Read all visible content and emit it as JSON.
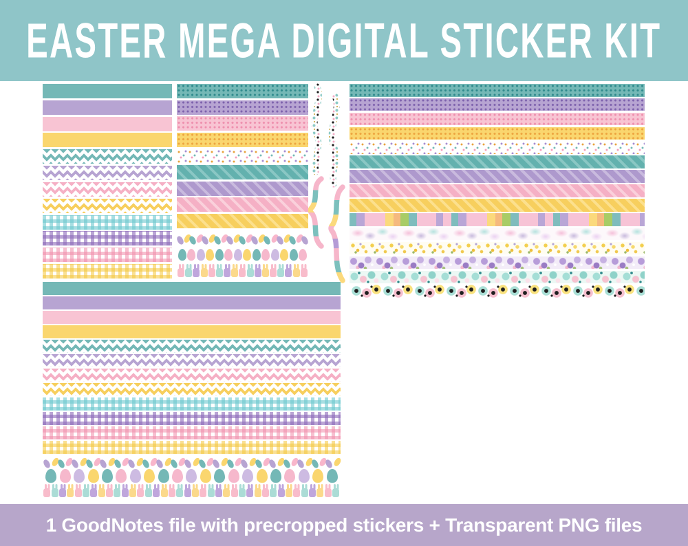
{
  "title_banner": {
    "text": "EASTER MEGA DIGITAL STICKER KIT",
    "bg": "#8fc5c8",
    "fg": "#ffffff"
  },
  "footer_banner": {
    "text": "1 GoodNotes file with precropped stickers + Transparent PNG files",
    "bg": "#b7a6ca",
    "fg": "#ffffff"
  },
  "palette": {
    "teal": "#74b8b6",
    "purple": "#b7a4d2",
    "pink": "#f8c4d3",
    "yellow": "#fad66e",
    "tealDot": "#2f8a8c",
    "purpleDot": "#7e62ad",
    "pinkDot": "#ee8fae",
    "yellowDot": "#eda43f",
    "tealLt": "#8ac7c4",
    "purpleLt": "#c9bade",
    "pinkLt": "#fad0db",
    "yellowLt": "#fce08d",
    "tealDg": "#63b1ae",
    "purpleDg": "#ae99cd",
    "pinkDg": "#f5b0c5",
    "yellowDg": "#f7cf5e",
    "tealGing": "rgba(108,200,206,0.6)",
    "purpleGing": "rgba(140,105,185,0.6)",
    "pinkGing": "rgba(240,140,170,0.55)",
    "yellowGing": "rgba(244,198,60,0.55)"
  },
  "icon_colors": {
    "beans": [
      "#b7a4d2",
      "#fad66e",
      "#74b8b6",
      "#f8b6cb"
    ],
    "eggs": [
      "#74b8b6",
      "#f6b8cc",
      "#cdbbe2",
      "#fad66e"
    ],
    "bunnies": [
      "#f8bccb",
      "#abdcd6",
      "#bfa6dc",
      "#fbd98b"
    ]
  },
  "panels": {
    "top_left": {
      "rows": [
        {
          "p": "solid",
          "c": "teal"
        },
        {
          "p": "solid",
          "c": "purple"
        },
        {
          "p": "solid",
          "c": "pink"
        },
        {
          "p": "solid",
          "c": "yellow"
        },
        {
          "p": "chevron",
          "c": "teal"
        },
        {
          "p": "chevron",
          "c": "purple"
        },
        {
          "p": "chevron",
          "c": "pinkDg"
        },
        {
          "p": "chevron",
          "c": "yellowDg"
        },
        {
          "p": "gingham",
          "c": "tealGing"
        },
        {
          "p": "gingham",
          "c": "purpleGing"
        },
        {
          "p": "gingham",
          "c": "pinkGing"
        },
        {
          "p": "gingham",
          "c": "yellowGing"
        }
      ]
    },
    "top_middle": {
      "rows": [
        {
          "p": "polka",
          "c": "teal",
          "c2": "tealDot"
        },
        {
          "p": "polka",
          "c": "purple",
          "c2": "purpleDot"
        },
        {
          "p": "polka",
          "c": "pink",
          "c2": "pinkDot"
        },
        {
          "p": "polka",
          "c": "yellow",
          "c2": "yellowDot"
        },
        {
          "p": "confetti"
        },
        {
          "p": "diag",
          "c": "tealDg",
          "c2": "tealLt"
        },
        {
          "p": "diag",
          "c": "purpleDg",
          "c2": "purpleLt"
        },
        {
          "p": "diag",
          "c": "pinkDg",
          "c2": "pinkLt"
        },
        {
          "p": "diag",
          "c": "yellowDg",
          "c2": "yellowLt"
        },
        {
          "p": "beans",
          "count": 21
        },
        {
          "p": "eggs",
          "count": 14
        },
        {
          "p": "bunnies",
          "count": 17
        }
      ]
    },
    "right": {
      "rows": [
        {
          "p": "polka",
          "c": "teal",
          "c2": "tealDot"
        },
        {
          "p": "polka",
          "c": "purple",
          "c2": "purpleDot"
        },
        {
          "p": "polka",
          "c": "pink",
          "c2": "pinkDot"
        },
        {
          "p": "polka",
          "c": "yellow",
          "c2": "yellowDot"
        },
        {
          "p": "confetti"
        },
        {
          "p": "diag",
          "c": "tealDg",
          "c2": "tealLt"
        },
        {
          "p": "diag",
          "c": "purpleDg",
          "c2": "purpleLt"
        },
        {
          "p": "diag",
          "c": "pinkDg",
          "c2": "pinkLt"
        },
        {
          "p": "diag",
          "c": "yellowDg",
          "c2": "yellowLt"
        },
        {
          "p": "colorblock"
        },
        {
          "p": "watercolor"
        },
        {
          "p": "yellowfloral"
        },
        {
          "p": "purplefloral"
        },
        {
          "p": "mintfloral"
        },
        {
          "p": "poppy"
        }
      ]
    },
    "bottom_left": {
      "rows": [
        {
          "p": "solid",
          "c": "teal"
        },
        {
          "p": "solid",
          "c": "purple"
        },
        {
          "p": "solid",
          "c": "pink"
        },
        {
          "p": "solid",
          "c": "yellow"
        },
        {
          "p": "chevron",
          "c": "teal"
        },
        {
          "p": "chevron",
          "c": "purple"
        },
        {
          "p": "chevron",
          "c": "pinkDg"
        },
        {
          "p": "chevron",
          "c": "yellowDg"
        },
        {
          "p": "gingham",
          "c": "tealGing"
        },
        {
          "p": "gingham",
          "c": "purpleGing"
        },
        {
          "p": "gingham",
          "c": "pinkGing"
        },
        {
          "p": "gingham",
          "c": "yellowGing"
        },
        {
          "p": "beans",
          "count": 42
        },
        {
          "p": "eggs",
          "count": 21
        },
        {
          "p": "bunnies",
          "count": 38
        }
      ]
    }
  },
  "decorations": {
    "items": [
      "floral-ribbon",
      "floral-ribbon",
      "striped-curly-brace",
      "striped-curly-brace"
    ]
  }
}
